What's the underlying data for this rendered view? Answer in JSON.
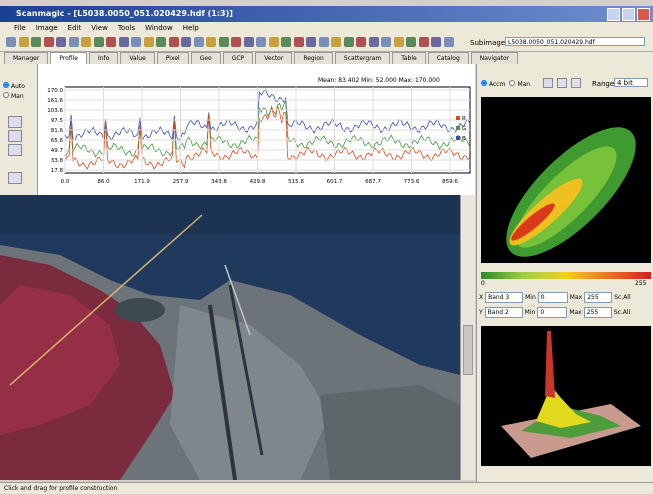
{
  "window": {
    "title": "Scanmagic - [L5038.0050_051.020429.hdf (1:3)]"
  },
  "menu": [
    "File",
    "Image",
    "Edit",
    "View",
    "Tools",
    "Window",
    "Help"
  ],
  "toolbar": {
    "subimage_label": "Subimage",
    "subimage_value": "L5038.0050_051.020429.hdf"
  },
  "tabs": [
    "Manager",
    "Profile",
    "Info",
    "Value",
    "Pixel",
    "Geo",
    "GCP",
    "Vector",
    "Region",
    "Scattergram",
    "Table",
    "Catalog",
    "Navigator"
  ],
  "left_panel": {
    "options": [
      "Auto",
      "Man"
    ]
  },
  "profile": {
    "stats": "Mean: 83.402   Min: 52.000   Max: 170.000",
    "yticks": [
      "170.0",
      "161.6",
      "103.6",
      "97.5",
      "81.6",
      "65.6",
      "49.7",
      "33.8",
      "17.8"
    ],
    "xticks": [
      "0.0",
      "86.0",
      "171.9",
      "257.9",
      "343.8",
      "429.8",
      "515.8",
      "601.7",
      "687.7",
      "773.6",
      "859.6"
    ],
    "legend": [
      "R",
      "G",
      "B"
    ]
  },
  "scattergram": {
    "options": [
      "Accm",
      "Man"
    ],
    "range_label": "Range",
    "range_value": "4 bit",
    "scale_min": "0",
    "scale_max": "255",
    "rows": [
      {
        "axis": "X",
        "band": "Band 3",
        "min_label": "Min",
        "min": "0",
        "max_label": "Max",
        "max": "255",
        "scale": "Sc.All"
      },
      {
        "axis": "Y",
        "band": "Band 2",
        "min_label": "Min",
        "min": "0",
        "max_label": "Max",
        "max": "255",
        "scale": "Sc.All"
      }
    ]
  },
  "status": "Click and drag for profile construction"
}
